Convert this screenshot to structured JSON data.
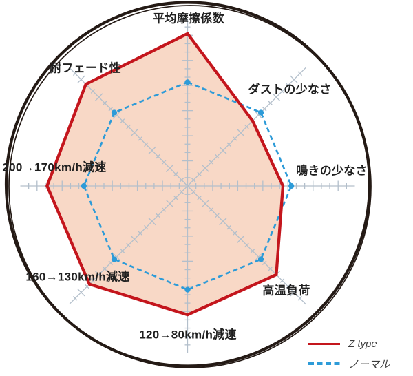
{
  "chart_data": {
    "type": "radar",
    "axes": [
      "平均摩擦係数",
      "ダストの少なさ",
      "鳴きの少なさ",
      "高温負荷",
      "120→80km/h減速",
      "160→130km/h減速",
      "200→170km/h減速",
      "耐フェード性"
    ],
    "scale": {
      "min": 0,
      "max": 10,
      "minor_tick": 0.5
    },
    "series": [
      {
        "name": "Z type",
        "line_style": "solid",
        "color": "#c4161d",
        "fill": "#f8d8c6",
        "values": [
          9.1,
          5.5,
          5.7,
          7.5,
          7.7,
          8.3,
          8.4,
          8.6
        ]
      },
      {
        "name": "ノーマル",
        "line_style": "dashed",
        "color": "#2d9bd8",
        "values": [
          6.2,
          6.2,
          6.2,
          6.2,
          6.2,
          6.2,
          6.2,
          6.2
        ]
      }
    ],
    "legend_position": "bottom-right",
    "grid_on": true,
    "grid_color": "#b3bfcb",
    "ring_color": "#241a15"
  }
}
